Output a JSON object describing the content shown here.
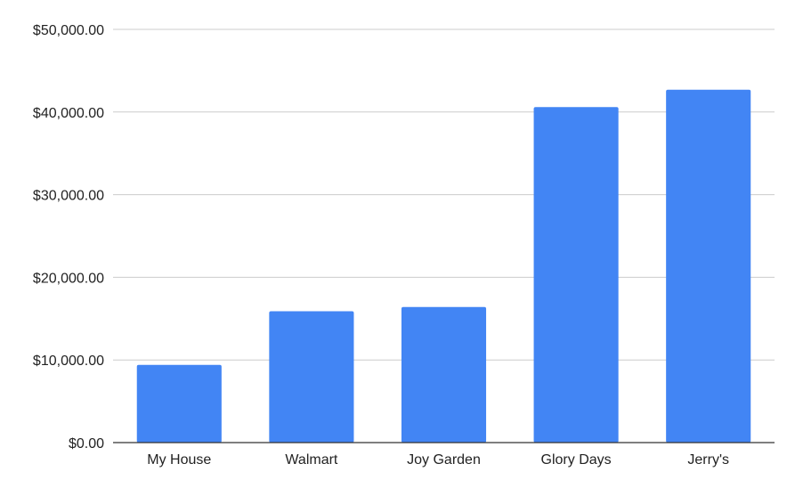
{
  "chart_data": {
    "type": "bar",
    "title": "",
    "xlabel": "",
    "ylabel": "",
    "categories": [
      "My House",
      "Walmart",
      "Joy Garden",
      "Glory Days",
      "Jerry's"
    ],
    "values": [
      9400,
      15900,
      16400,
      40600,
      42700
    ],
    "ylim": [
      0,
      50000
    ],
    "yticks": [
      0,
      10000,
      20000,
      30000,
      40000,
      50000
    ],
    "ytick_labels": [
      "$0.00",
      "$10,000.00",
      "$20,000.00",
      "$30,000.00",
      "$40,000.00",
      "$50,000.00"
    ],
    "grid": true,
    "legend": "none",
    "colors": {
      "bar": "#4285f4",
      "grid": "#cccccc",
      "axis": "#333333",
      "text": "#222222"
    }
  }
}
